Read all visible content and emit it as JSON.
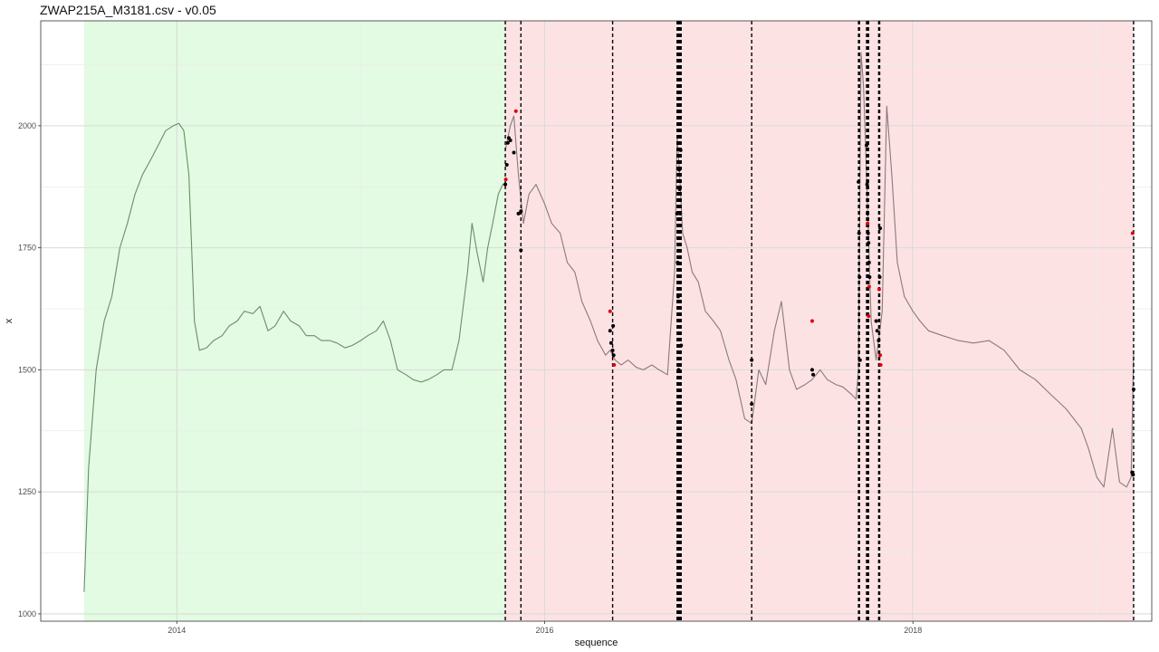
{
  "chart_data": {
    "type": "line",
    "title": "ZWAP215A_M3181.csv - v0.05",
    "xlabel": "sequence",
    "ylabel": "x",
    "x_range": [
      "2013-04-06",
      "2019-04-20"
    ],
    "ylim": [
      985,
      2215
    ],
    "x_ticks": [
      "2014",
      "2016",
      "2018"
    ],
    "x_tick_dates": [
      "2014-01-01",
      "2016-01-01",
      "2018-01-01"
    ],
    "y_ticks": [
      1000,
      1250,
      1500,
      1750,
      2000
    ],
    "grid": true,
    "colors": {
      "panel_border": "#333333",
      "grid_major": "#d9d9d9",
      "grid_minor": "#ebebeb",
      "normal_region": "#e2fbe2",
      "anomaly_region": "#fde2e4",
      "normal_line": "#6c8c6c",
      "anomaly_line": "#8a7a7a",
      "changepoint": "#000000",
      "point_black": "#000000",
      "point_red": "#e0000a"
    },
    "regions": [
      {
        "kind": "normal",
        "start": "2013-07-01",
        "end": "2015-10-15"
      },
      {
        "kind": "anomaly",
        "start": "2015-10-15",
        "end": "2019-03-15"
      }
    ],
    "series": [
      {
        "kind": "normal",
        "x": [
          "2013-07-01",
          "2013-07-10",
          "2013-07-25",
          "2013-08-10",
          "2013-08-25",
          "2013-09-10",
          "2013-09-25",
          "2013-10-10",
          "2013-10-25",
          "2013-11-10",
          "2013-11-25",
          "2013-12-10",
          "2013-12-25",
          "2014-01-05",
          "2014-01-15",
          "2014-01-25",
          "2014-02-05",
          "2014-02-15",
          "2014-03-01",
          "2014-03-15",
          "2014-04-01",
          "2014-04-15",
          "2014-05-01",
          "2014-05-15",
          "2014-06-01",
          "2014-06-15",
          "2014-07-01",
          "2014-07-15",
          "2014-08-01",
          "2014-08-15",
          "2014-09-01",
          "2014-09-15",
          "2014-10-01",
          "2014-10-15",
          "2014-11-01",
          "2014-11-15",
          "2014-12-01",
          "2014-12-15",
          "2015-01-01",
          "2015-01-15",
          "2015-02-01",
          "2015-02-15",
          "2015-03-01",
          "2015-03-15",
          "2015-04-01",
          "2015-04-15",
          "2015-05-01",
          "2015-05-15",
          "2015-06-01",
          "2015-06-15",
          "2015-07-01",
          "2015-07-15",
          "2015-08-01",
          "2015-08-10",
          "2015-08-20",
          "2015-09-01",
          "2015-09-10",
          "2015-09-20",
          "2015-10-01",
          "2015-10-10",
          "2015-10-15"
        ],
        "y": [
          1045,
          1300,
          1500,
          1600,
          1650,
          1750,
          1800,
          1860,
          1900,
          1930,
          1960,
          1990,
          2000,
          2005,
          1990,
          1900,
          1600,
          1540,
          1545,
          1560,
          1570,
          1590,
          1600,
          1620,
          1615,
          1630,
          1580,
          1590,
          1620,
          1600,
          1590,
          1570,
          1570,
          1560,
          1560,
          1555,
          1545,
          1550,
          1560,
          1570,
          1580,
          1600,
          1560,
          1500,
          1490,
          1480,
          1475,
          1480,
          1490,
          1500,
          1500,
          1560,
          1700,
          1800,
          1740,
          1680,
          1750,
          1800,
          1860,
          1880,
          1880
        ]
      },
      {
        "kind": "anomaly",
        "x": [
          "2015-10-15",
          "2015-10-25",
          "2015-11-01",
          "2015-11-10",
          "2015-11-20",
          "2015-12-01",
          "2015-12-15",
          "2016-01-01",
          "2016-01-15",
          "2016-02-01",
          "2016-02-15",
          "2016-03-01",
          "2016-03-15",
          "2016-04-01",
          "2016-04-15",
          "2016-05-01",
          "2016-05-10",
          "2016-05-20",
          "2016-06-01",
          "2016-06-15",
          "2016-07-01",
          "2016-07-15",
          "2016-08-01",
          "2016-08-15",
          "2016-09-01",
          "2016-09-15",
          "2016-09-20",
          "2016-09-25",
          "2016-10-01",
          "2016-10-10",
          "2016-10-20",
          "2016-11-01",
          "2016-11-15",
          "2016-12-01",
          "2016-12-15",
          "2017-01-01",
          "2017-01-15",
          "2017-02-01",
          "2017-02-15",
          "2017-03-01",
          "2017-03-15",
          "2017-04-01",
          "2017-04-15",
          "2017-05-01",
          "2017-05-15",
          "2017-06-01",
          "2017-06-15",
          "2017-07-01",
          "2017-07-15",
          "2017-08-01",
          "2017-08-15",
          "2017-09-01",
          "2017-09-10",
          "2017-09-15",
          "2017-09-20",
          "2017-09-25",
          "2017-10-01",
          "2017-10-10",
          "2017-10-20",
          "2017-11-01",
          "2017-11-10",
          "2017-11-20",
          "2017-12-01",
          "2017-12-15",
          "2018-01-01",
          "2018-01-15",
          "2018-02-01",
          "2018-03-01",
          "2018-04-01",
          "2018-05-01",
          "2018-06-01",
          "2018-07-01",
          "2018-08-01",
          "2018-09-01",
          "2018-10-01",
          "2018-11-01",
          "2018-12-01",
          "2018-12-15",
          "2019-01-01",
          "2019-01-15",
          "2019-02-01",
          "2019-02-15",
          "2019-03-01",
          "2019-03-10",
          "2019-03-15"
        ],
        "y": [
          1950,
          2000,
          2020,
          1900,
          1800,
          1860,
          1880,
          1840,
          1800,
          1780,
          1720,
          1700,
          1640,
          1600,
          1560,
          1530,
          1540,
          1520,
          1510,
          1520,
          1505,
          1500,
          1510,
          1500,
          1490,
          1700,
          1980,
          1900,
          1780,
          1750,
          1700,
          1680,
          1620,
          1600,
          1580,
          1520,
          1480,
          1400,
          1390,
          1500,
          1470,
          1580,
          1640,
          1500,
          1460,
          1470,
          1480,
          1500,
          1480,
          1470,
          1465,
          1450,
          1440,
          1500,
          2150,
          2080,
          1900,
          1600,
          1520,
          1620,
          2040,
          1900,
          1720,
          1650,
          1620,
          1600,
          1580,
          1570,
          1560,
          1555,
          1560,
          1540,
          1500,
          1480,
          1450,
          1420,
          1380,
          1340,
          1280,
          1260,
          1380,
          1270,
          1260,
          1280,
          1540
        ]
      }
    ],
    "changepoints": [
      "2015-10-15",
      "2015-11-15",
      "2016-05-15",
      "2016-09-20",
      "2016-09-22",
      "2016-09-24",
      "2016-09-26",
      "2016-09-28",
      "2017-02-15",
      "2017-09-15",
      "2017-09-17",
      "2017-10-01",
      "2017-10-03",
      "2017-10-05",
      "2017-10-25",
      "2017-10-27",
      "2019-03-15"
    ],
    "points_black": [
      {
        "x": "2015-10-15",
        "y": 1880
      },
      {
        "x": "2015-10-18",
        "y": 1920
      },
      {
        "x": "2015-10-20",
        "y": 1965
      },
      {
        "x": "2015-10-22",
        "y": 1975
      },
      {
        "x": "2015-10-25",
        "y": 1970
      },
      {
        "x": "2015-11-01",
        "y": 1945
      },
      {
        "x": "2015-11-10",
        "y": 1820
      },
      {
        "x": "2015-11-15",
        "y": 1745
      },
      {
        "x": "2015-11-15",
        "y": 1825
      },
      {
        "x": "2016-05-10",
        "y": 1580
      },
      {
        "x": "2016-05-12",
        "y": 1555
      },
      {
        "x": "2016-05-15",
        "y": 1540
      },
      {
        "x": "2016-05-16",
        "y": 1590
      },
      {
        "x": "2016-05-17",
        "y": 1530
      },
      {
        "x": "2016-09-20",
        "y": 1820
      },
      {
        "x": "2016-09-21",
        "y": 1720
      },
      {
        "x": "2016-09-22",
        "y": 1650
      },
      {
        "x": "2016-09-23",
        "y": 1500
      },
      {
        "x": "2016-09-24",
        "y": 1910
      },
      {
        "x": "2016-09-25",
        "y": 1870
      },
      {
        "x": "2016-09-26",
        "y": 1820
      },
      {
        "x": "2016-09-27",
        "y": 1950
      },
      {
        "x": "2016-09-28",
        "y": 1550
      },
      {
        "x": "2017-02-15",
        "y": 1520
      },
      {
        "x": "2017-02-15",
        "y": 1430
      },
      {
        "x": "2017-06-15",
        "y": 1500
      },
      {
        "x": "2017-06-17",
        "y": 1490
      },
      {
        "x": "2017-09-15",
        "y": 1885
      },
      {
        "x": "2017-09-16",
        "y": 1780
      },
      {
        "x": "2017-09-17",
        "y": 1690
      },
      {
        "x": "2017-09-18",
        "y": 1520
      },
      {
        "x": "2017-10-01",
        "y": 1960
      },
      {
        "x": "2017-10-02",
        "y": 1880
      },
      {
        "x": "2017-10-03",
        "y": 1820
      },
      {
        "x": "2017-10-04",
        "y": 1780
      },
      {
        "x": "2017-10-05",
        "y": 1760
      },
      {
        "x": "2017-10-06",
        "y": 1720
      },
      {
        "x": "2017-10-07",
        "y": 1690
      },
      {
        "x": "2017-10-20",
        "y": 1600
      },
      {
        "x": "2017-10-22",
        "y": 1580
      },
      {
        "x": "2017-10-25",
        "y": 1560
      },
      {
        "x": "2017-10-27",
        "y": 1690
      },
      {
        "x": "2017-10-28",
        "y": 1790
      },
      {
        "x": "2019-03-12",
        "y": 1290
      },
      {
        "x": "2019-03-14",
        "y": 1285
      },
      {
        "x": "2019-03-15",
        "y": 1460
      }
    ],
    "points_red": [
      {
        "x": "2015-10-16",
        "y": 1890
      },
      {
        "x": "2015-11-05",
        "y": 2030
      },
      {
        "x": "2016-05-10",
        "y": 1620
      },
      {
        "x": "2016-05-18",
        "y": 1510
      },
      {
        "x": "2017-06-15",
        "y": 1600
      },
      {
        "x": "2017-10-03",
        "y": 1800
      },
      {
        "x": "2017-10-05",
        "y": 1610
      },
      {
        "x": "2017-10-06",
        "y": 1670
      },
      {
        "x": "2017-10-26",
        "y": 1665
      },
      {
        "x": "2017-10-28",
        "y": 1530
      },
      {
        "x": "2017-10-29",
        "y": 1510
      },
      {
        "x": "2019-03-13",
        "y": 1780
      }
    ]
  }
}
